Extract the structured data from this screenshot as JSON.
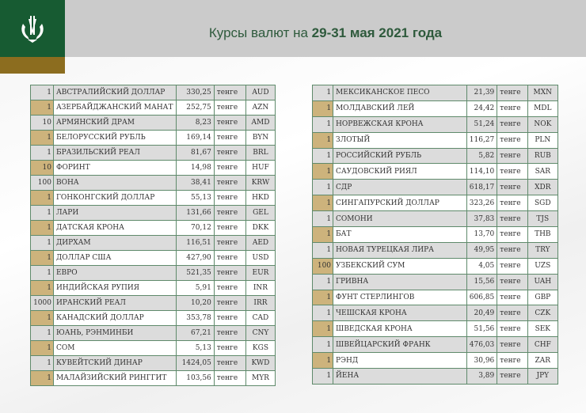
{
  "title": {
    "prefix": "Курсы валют на ",
    "bold": "29-31 мая 2021 года"
  },
  "colors": {
    "header_bg": "#cbcbcb",
    "logo_bg": "#175b32",
    "gold": "#8c6d1f",
    "row_gold": "#cdb37c",
    "border": "#5f8a6b"
  },
  "unit": "тенге",
  "left_table": [
    [
      "1",
      "АВСТРАЛИЙСКИЙ ДОЛЛАР",
      "330,25",
      "AUD"
    ],
    [
      "1",
      "АЗЕРБАЙДЖАНСКИЙ МАНАТ",
      "252,75",
      "AZN"
    ],
    [
      "10",
      "АРМЯНСКИЙ  ДРАМ",
      "8,23",
      "AMD"
    ],
    [
      "1",
      "БЕЛОРУССКИЙ РУБЛЬ",
      "169,14",
      "BYN"
    ],
    [
      "1",
      "БРАЗИЛЬСКИЙ РЕАЛ",
      "81,67",
      "BRL"
    ],
    [
      "10",
      "ФОРИНТ",
      "14,98",
      "HUF"
    ],
    [
      "100",
      "ВОНА",
      "38,41",
      "KRW"
    ],
    [
      "1",
      "ГОНКОНГСКИЙ ДОЛЛАР",
      "55,13",
      "HKD"
    ],
    [
      "1",
      "ЛАРИ",
      "131,66",
      "GEL"
    ],
    [
      "1",
      "ДАТСКАЯ КРОНА",
      "70,12",
      "DKK"
    ],
    [
      "1",
      "ДИРХАМ",
      "116,51",
      "AED"
    ],
    [
      "1",
      "ДОЛЛАР США",
      "427,90",
      "USD"
    ],
    [
      "1",
      "ЕВРО",
      "521,35",
      "EUR"
    ],
    [
      "1",
      "ИНДИЙСКАЯ РУПИЯ",
      "5,91",
      "INR"
    ],
    [
      "1000",
      "ИРАНСКИЙ РЕАЛ",
      "10,20",
      "IRR"
    ],
    [
      "1",
      "КАНАДСКИЙ ДОЛЛАР",
      "353,78",
      "CAD"
    ],
    [
      "1",
      "ЮАНЬ, РЭНМИНБИ",
      "67,21",
      "CNY"
    ],
    [
      "1",
      "СОМ",
      "5,13",
      "KGS"
    ],
    [
      "1",
      "КУВЕЙТСКИЙ ДИНАР",
      "1424,05",
      "KWD"
    ],
    [
      "1",
      "МАЛАЙЗИЙСКИЙ РИНГГИТ",
      "103,56",
      "MYR"
    ]
  ],
  "right_table": [
    [
      "1",
      "МЕКСИКАНСКОЕ ПЕСО",
      "21,39",
      "MXN"
    ],
    [
      "1",
      "МОЛДАВСКИЙ ЛЕЙ",
      "24,42",
      "MDL"
    ],
    [
      "1",
      "НОРВЕЖСКАЯ КРОНА",
      "51,24",
      "NOK"
    ],
    [
      "1",
      "ЗЛОТЫЙ",
      "116,27",
      "PLN"
    ],
    [
      "1",
      "РОССИЙСКИЙ РУБЛЬ",
      "5,82",
      "RUB"
    ],
    [
      "1",
      "САУДОВСКИЙ РИЯЛ",
      "114,10",
      "SAR"
    ],
    [
      "1",
      "СДР",
      "618,17",
      "XDR"
    ],
    [
      "1",
      "СИНГАПУРСКИЙ ДОЛЛАР",
      "323,26",
      "SGD"
    ],
    [
      "1",
      "СОМОНИ",
      "37,83",
      "TJS"
    ],
    [
      "1",
      "БАТ",
      "13,70",
      "THB"
    ],
    [
      "1",
      "НОВАЯ ТУРЕЦКАЯ ЛИРА",
      "49,95",
      "TRY"
    ],
    [
      "100",
      "УЗБЕКСКИЙ СУМ",
      "4,05",
      "UZS"
    ],
    [
      "1",
      "ГРИВНА",
      "15,56",
      "UAH"
    ],
    [
      "1",
      "ФУНТ СТЕРЛИНГОВ",
      "606,85",
      "GBP"
    ],
    [
      "1",
      "ЧЕШСКАЯ КРОНА",
      "20,49",
      "CZK"
    ],
    [
      "1",
      "ШВЕДСКАЯ КРОНА",
      "51,56",
      "SEK"
    ],
    [
      "1",
      "ШВЕЙЦАРСКИЙ ФРАНК",
      "476,03",
      "CHF"
    ],
    [
      "1",
      "РЭНД",
      "30,96",
      "ZAR"
    ],
    [
      "1",
      "ЙЕНА",
      "3,89",
      "JPY"
    ]
  ]
}
